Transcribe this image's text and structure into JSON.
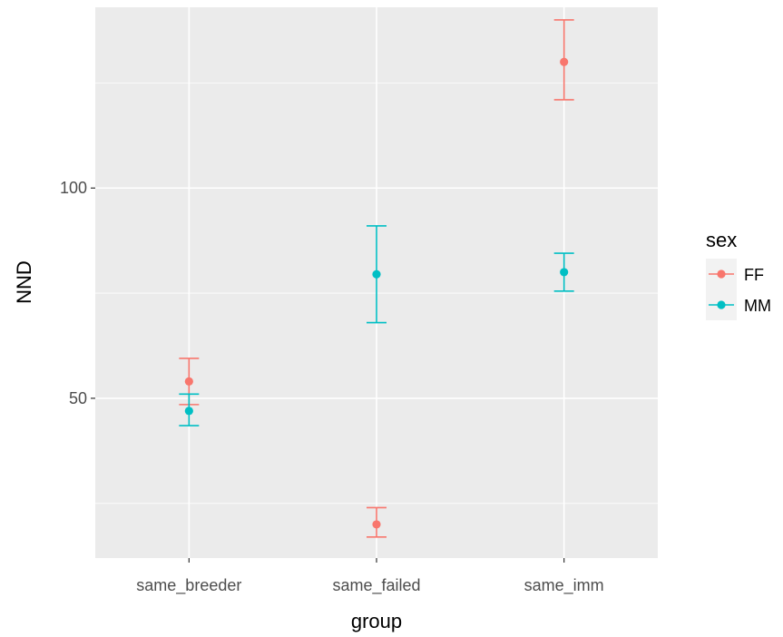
{
  "chart_data": {
    "type": "scatter",
    "xlabel": "group",
    "ylabel": "NND",
    "categories": [
      "same_breeder",
      "same_failed",
      "same_imm"
    ],
    "y_ticks": [
      50,
      100
    ],
    "ylim": [
      12,
      143
    ],
    "grid": true,
    "legend": {
      "title": "sex",
      "position": "right"
    },
    "series": [
      {
        "name": "FF",
        "color": "#F8766D",
        "points": [
          {
            "x": "same_breeder",
            "y": 54,
            "ymin": 48.5,
            "ymax": 59.5
          },
          {
            "x": "same_failed",
            "y": 20,
            "ymin": 17,
            "ymax": 24
          },
          {
            "x": "same_imm",
            "y": 130,
            "ymin": 121,
            "ymax": 140
          }
        ]
      },
      {
        "name": "MM",
        "color": "#00BFC4",
        "points": [
          {
            "x": "same_breeder",
            "y": 47,
            "ymin": 43.5,
            "ymax": 51
          },
          {
            "x": "same_failed",
            "y": 79.5,
            "ymin": 68,
            "ymax": 91
          },
          {
            "x": "same_imm",
            "y": 80,
            "ymin": 75.5,
            "ymax": 84.5
          }
        ]
      }
    ]
  }
}
